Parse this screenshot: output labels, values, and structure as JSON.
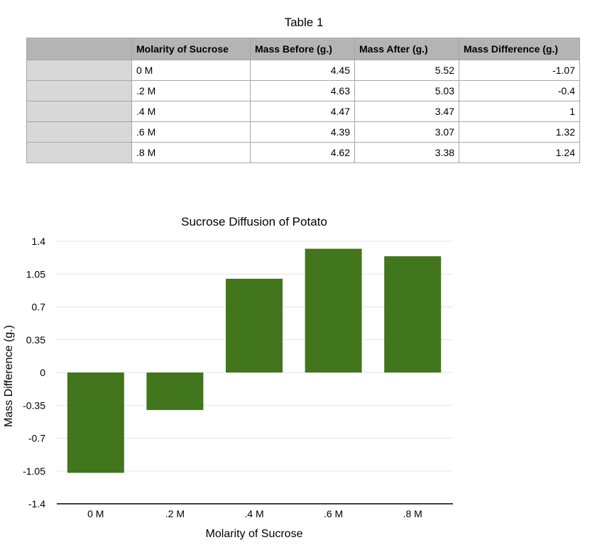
{
  "table": {
    "title": "Table 1",
    "headers": [
      "",
      "Molarity of Sucrose",
      "Mass Before (g.)",
      "Mass After (g.)",
      "Mass Difference (g.)"
    ],
    "rows": [
      [
        "",
        "0 M",
        "4.45",
        "5.52",
        "-1.07"
      ],
      [
        "",
        ".2 M",
        "4.63",
        "5.03",
        "-0.4"
      ],
      [
        "",
        ".4 M",
        "4.47",
        "3.47",
        "1"
      ],
      [
        "",
        ".6 M",
        "4.39",
        "3.07",
        "1.32"
      ],
      [
        "",
        ".8 M",
        "4.62",
        "3.38",
        "1.24"
      ]
    ]
  },
  "chart_data": {
    "type": "bar",
    "title": "Sucrose Diffusion of Potato",
    "xlabel": "Molarity of Sucrose",
    "ylabel": "Mass Difference (g.)",
    "categories": [
      "0 M",
      ".2 M",
      ".4 M",
      ".6 M",
      ".8 M"
    ],
    "values": [
      -1.07,
      -0.4,
      1,
      1.32,
      1.24
    ],
    "ylim": [
      -1.4,
      1.4
    ],
    "yticks": [
      "1.4",
      "1.05",
      "0.7",
      "0.35",
      "0",
      "-0.35",
      "-0.7",
      "-1.05",
      "-1.4"
    ],
    "grid": true,
    "legend": "none",
    "bar_color": "#41761c",
    "grid_color": "#e3e3e3",
    "axis_color": "#000000"
  }
}
